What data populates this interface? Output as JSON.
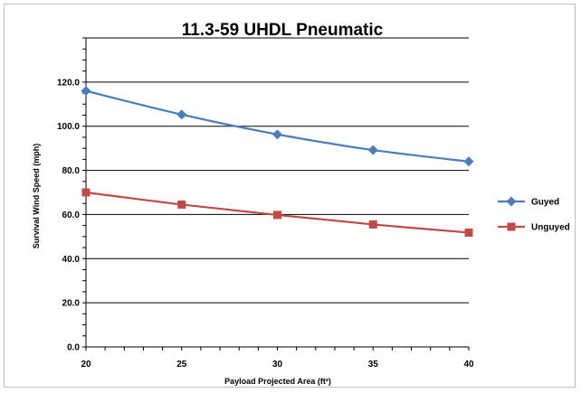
{
  "chart_data": {
    "type": "line",
    "title": "11.3-59 UHDL Pneumatic",
    "xlabel": "Payload Projected Area (ft²)",
    "ylabel": "Survival Wind Speed (mph)",
    "x": [
      20,
      25,
      30,
      35,
      40
    ],
    "x_tick_labels": [
      "20",
      "25",
      "30",
      "35",
      "40"
    ],
    "y_tick_labels": [
      "0.0",
      "20.0",
      "40.0",
      "60.0",
      "80.0",
      "100.0",
      "120.0"
    ],
    "xlim": [
      20,
      40
    ],
    "ylim": [
      0,
      140
    ],
    "grid": "horizontal",
    "legend_position": "right",
    "series": [
      {
        "name": "Guyed",
        "values": [
          116,
          105.3,
          96.3,
          89.2,
          84
        ],
        "color": "#4a7ebb",
        "marker": "diamond"
      },
      {
        "name": "Unguyed",
        "values": [
          70,
          64.5,
          59.8,
          55.5,
          51.8
        ],
        "color": "#be4b48",
        "marker": "square"
      }
    ]
  }
}
